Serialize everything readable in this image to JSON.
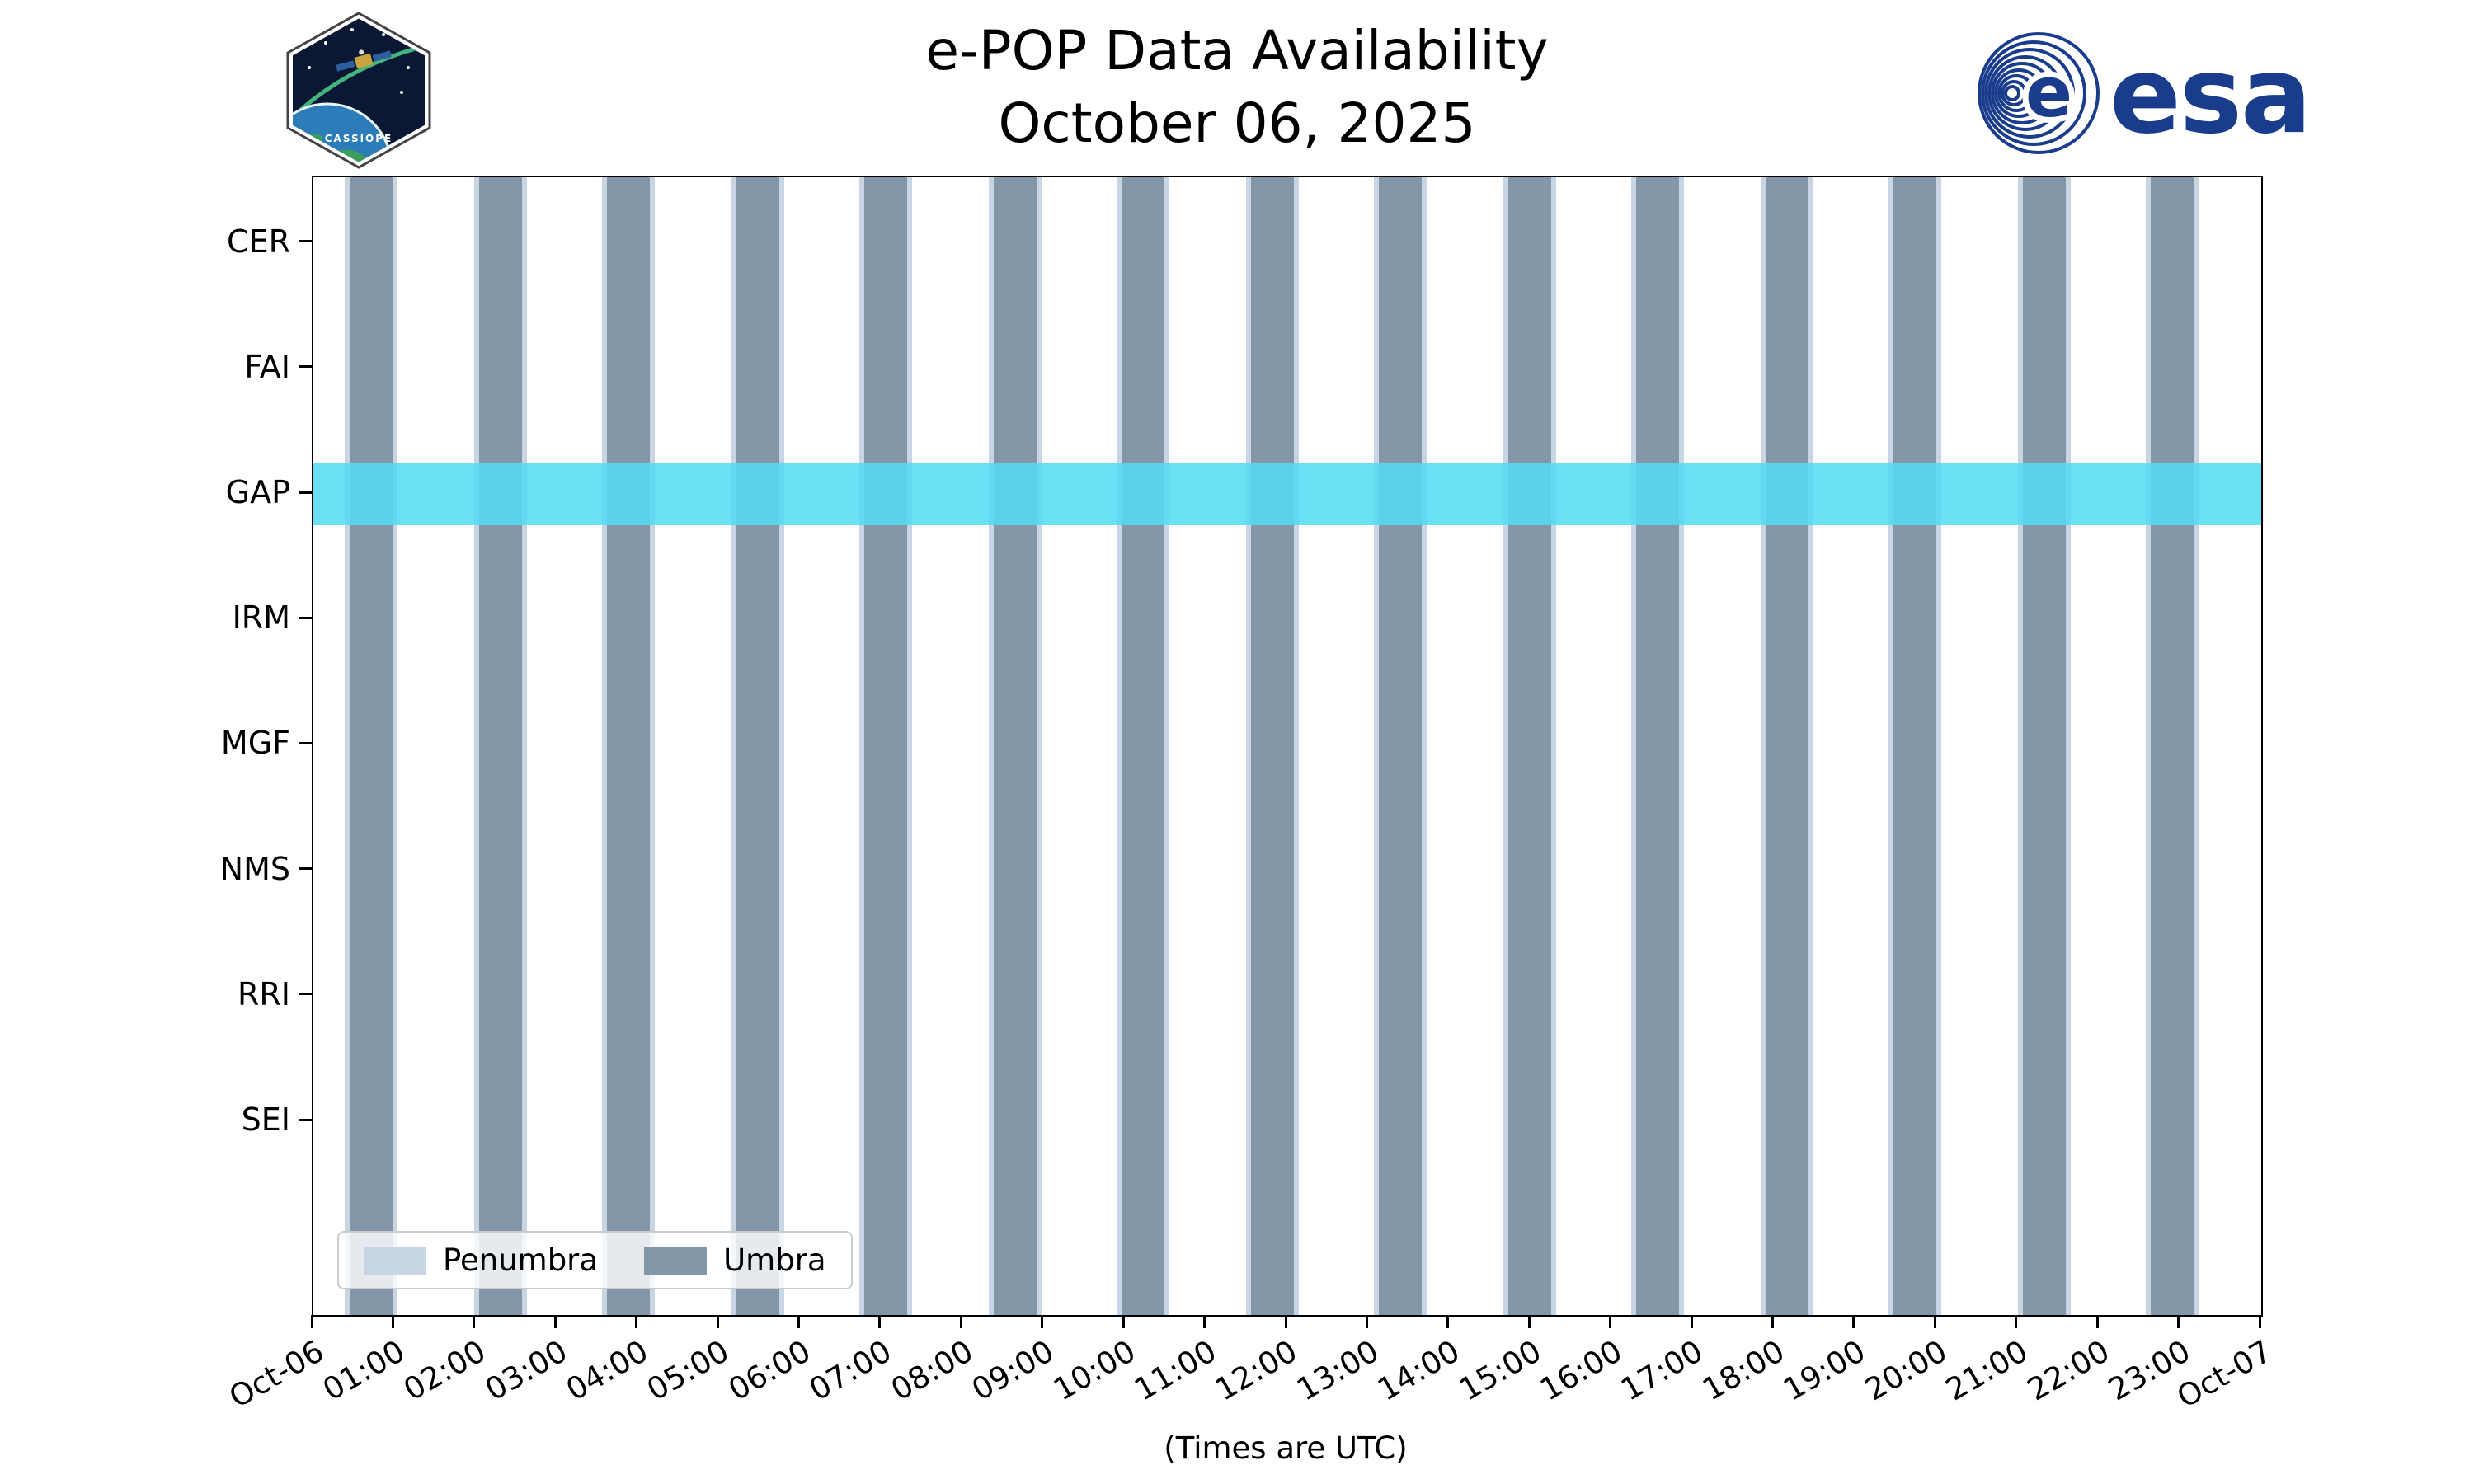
{
  "header": {
    "title_line1": "e-POP Data Availability",
    "title_line2": "October 06, 2025",
    "cassiope_patch_label": "CASSIOPE",
    "esa_wordmark": "esa"
  },
  "chart_data": {
    "type": "availability-timeline",
    "title": "e-POP Data Availability",
    "subtitle": "October 06, 2025",
    "xlabel": "(Times are UTC)",
    "x_range_hours": [
      0,
      24
    ],
    "x_ticks": [
      "Oct-06",
      "01:00",
      "02:00",
      "03:00",
      "04:00",
      "05:00",
      "06:00",
      "07:00",
      "08:00",
      "09:00",
      "10:00",
      "11:00",
      "12:00",
      "13:00",
      "14:00",
      "15:00",
      "16:00",
      "17:00",
      "18:00",
      "19:00",
      "20:00",
      "21:00",
      "22:00",
      "23:00",
      "Oct-07"
    ],
    "instruments": [
      "CER",
      "FAI",
      "GAP",
      "IRM",
      "MGF",
      "NMS",
      "RRI",
      "SEI"
    ],
    "availability": [
      {
        "instrument": "GAP",
        "start_hour": 0.0,
        "end_hour": 24.0
      }
    ],
    "umbra_intervals_hours": [
      [
        0.45,
        0.98
      ],
      [
        2.04,
        2.57
      ],
      [
        3.62,
        4.15
      ],
      [
        5.21,
        5.74
      ],
      [
        6.79,
        7.32
      ],
      [
        8.38,
        8.91
      ],
      [
        9.96,
        10.49
      ],
      [
        11.55,
        12.08
      ],
      [
        13.13,
        13.66
      ],
      [
        14.72,
        15.25
      ],
      [
        16.3,
        16.83
      ],
      [
        17.89,
        18.42
      ],
      [
        19.47,
        20.0
      ],
      [
        21.06,
        21.59
      ],
      [
        22.64,
        23.17
      ]
    ],
    "penumbra_edge_hours": 0.06,
    "legend": [
      {
        "label": "Penumbra",
        "color": "#C7D6E2"
      },
      {
        "label": "Umbra",
        "color": "#8497A8"
      }
    ],
    "colors": {
      "umbra": "#8497A8",
      "penumbra": "#C7D6E2",
      "availability": "#57DBF3",
      "axis": "#000000",
      "legend_border": "#CCCCCC",
      "esa_blue": "#1A3C8C"
    }
  }
}
